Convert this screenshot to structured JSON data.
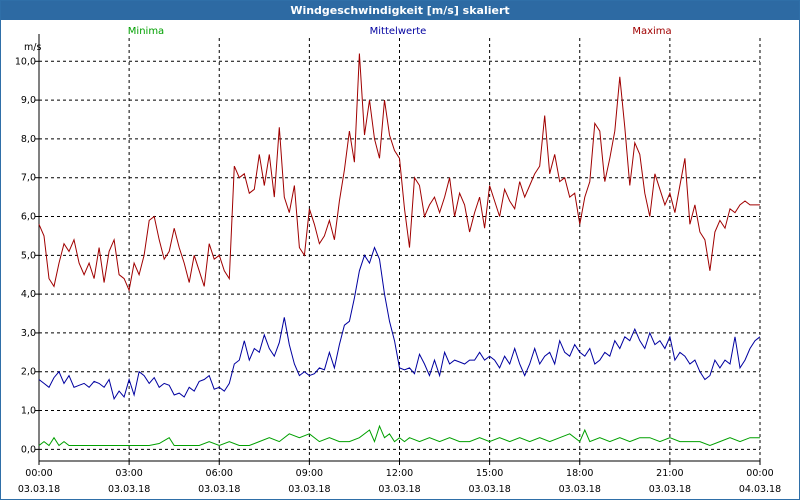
{
  "window_title": "Windgeschwindigkeit [m/s] skaliert",
  "colors": {
    "titlebar": "#2d6aa3",
    "minima": "#00a000",
    "mittelwerte": "#0000a0",
    "maxima": "#a00000"
  },
  "chart_data": {
    "type": "line",
    "title": "Windgeschwindigkeit [m/s] skaliert",
    "ylabel": "m/s",
    "xlabel": "",
    "ylim": [
      -0.3,
      10.6
    ],
    "xlim": [
      "03.03.18 00:00",
      "04.03.18 00:00"
    ],
    "grid": true,
    "legend_placement": "top",
    "y_ticks": [
      0.0,
      1.0,
      2.0,
      3.0,
      4.0,
      5.0,
      6.0,
      7.0,
      8.0,
      9.0,
      10.0
    ],
    "y_tick_labels": [
      "0,0",
      "1,0",
      "2,0",
      "3,0",
      "4,0",
      "5,0",
      "6,0",
      "7,0",
      "8,0",
      "9,0",
      "10,0"
    ],
    "x_ticks": [
      {
        "time": "00:00",
        "date": "03.03.18"
      },
      {
        "time": "03:00",
        "date": "03.03.18"
      },
      {
        "time": "06:00",
        "date": "03.03.18"
      },
      {
        "time": "09:00",
        "date": "03.03.18"
      },
      {
        "time": "12:00",
        "date": "03.03.18"
      },
      {
        "time": "15:00",
        "date": "03.03.18"
      },
      {
        "time": "18:00",
        "date": "03.03.18"
      },
      {
        "time": "21:00",
        "date": "03.03.18"
      },
      {
        "time": "00:00",
        "date": "04.03.18"
      }
    ],
    "series": [
      {
        "name": "Minima",
        "color": "#00a000",
        "x": [
          "00:00",
          "00:10",
          "00:20",
          "00:30",
          "00:40",
          "00:50",
          "01:00",
          "01:20",
          "01:40",
          "02:00",
          "02:20",
          "02:40",
          "03:00",
          "03:20",
          "03:40",
          "04:00",
          "04:20",
          "04:30",
          "04:40",
          "05:00",
          "05:20",
          "05:40",
          "06:00",
          "06:20",
          "06:40",
          "07:00",
          "07:20",
          "07:40",
          "08:00",
          "08:20",
          "08:40",
          "09:00",
          "09:20",
          "09:40",
          "10:00",
          "10:20",
          "10:40",
          "11:00",
          "11:10",
          "11:20",
          "11:30",
          "11:40",
          "11:50",
          "12:00",
          "12:10",
          "12:20",
          "12:40",
          "13:00",
          "13:20",
          "13:40",
          "14:00",
          "14:20",
          "14:40",
          "15:00",
          "15:20",
          "15:40",
          "16:00",
          "16:20",
          "16:40",
          "17:00",
          "17:20",
          "17:40",
          "18:00",
          "18:10",
          "18:20",
          "18:40",
          "19:00",
          "19:20",
          "19:40",
          "20:00",
          "20:20",
          "20:40",
          "21:00",
          "21:20",
          "21:40",
          "22:00",
          "22:20",
          "22:40",
          "23:00",
          "23:20",
          "23:40",
          "24:00"
        ],
        "y": [
          0.1,
          0.2,
          0.1,
          0.3,
          0.1,
          0.2,
          0.1,
          0.1,
          0.1,
          0.1,
          0.1,
          0.1,
          0.1,
          0.1,
          0.1,
          0.15,
          0.3,
          0.1,
          0.1,
          0.1,
          0.1,
          0.2,
          0.1,
          0.2,
          0.1,
          0.1,
          0.2,
          0.3,
          0.2,
          0.4,
          0.3,
          0.4,
          0.2,
          0.3,
          0.2,
          0.2,
          0.3,
          0.5,
          0.2,
          0.6,
          0.3,
          0.4,
          0.2,
          0.3,
          0.2,
          0.3,
          0.2,
          0.3,
          0.2,
          0.3,
          0.2,
          0.2,
          0.3,
          0.2,
          0.3,
          0.2,
          0.3,
          0.2,
          0.3,
          0.2,
          0.3,
          0.4,
          0.2,
          0.5,
          0.2,
          0.3,
          0.2,
          0.3,
          0.2,
          0.3,
          0.3,
          0.2,
          0.3,
          0.2,
          0.2,
          0.2,
          0.1,
          0.2,
          0.3,
          0.2,
          0.3,
          0.3
        ]
      },
      {
        "name": "Mittelwerte",
        "color": "#0000a0",
        "x": [
          "00:00",
          "00:10",
          "00:20",
          "00:30",
          "00:40",
          "00:50",
          "01:00",
          "01:10",
          "01:20",
          "01:30",
          "01:40",
          "01:50",
          "02:00",
          "02:10",
          "02:20",
          "02:30",
          "02:40",
          "02:50",
          "03:00",
          "03:10",
          "03:20",
          "03:30",
          "03:40",
          "03:50",
          "04:00",
          "04:10",
          "04:20",
          "04:30",
          "04:40",
          "04:50",
          "05:00",
          "05:10",
          "05:20",
          "05:30",
          "05:40",
          "05:50",
          "06:00",
          "06:10",
          "06:20",
          "06:30",
          "06:40",
          "06:50",
          "07:00",
          "07:10",
          "07:20",
          "07:30",
          "07:40",
          "07:50",
          "08:00",
          "08:10",
          "08:20",
          "08:30",
          "08:40",
          "08:50",
          "09:00",
          "09:10",
          "09:20",
          "09:30",
          "09:40",
          "09:50",
          "10:00",
          "10:10",
          "10:20",
          "10:30",
          "10:40",
          "10:50",
          "11:00",
          "11:10",
          "11:20",
          "11:30",
          "11:40",
          "11:50",
          "12:00",
          "12:10",
          "12:20",
          "12:30",
          "12:40",
          "12:50",
          "13:00",
          "13:10",
          "13:20",
          "13:30",
          "13:40",
          "13:50",
          "14:00",
          "14:10",
          "14:20",
          "14:30",
          "14:40",
          "14:50",
          "15:00",
          "15:10",
          "15:20",
          "15:30",
          "15:40",
          "15:50",
          "16:00",
          "16:10",
          "16:20",
          "16:30",
          "16:40",
          "16:50",
          "17:00",
          "17:10",
          "17:20",
          "17:30",
          "17:40",
          "17:50",
          "18:00",
          "18:10",
          "18:20",
          "18:30",
          "18:40",
          "18:50",
          "19:00",
          "19:10",
          "19:20",
          "19:30",
          "19:40",
          "19:50",
          "20:00",
          "20:10",
          "20:20",
          "20:30",
          "20:40",
          "20:50",
          "21:00",
          "21:10",
          "21:20",
          "21:30",
          "21:40",
          "21:50",
          "22:00",
          "22:10",
          "22:20",
          "22:30",
          "22:40",
          "22:50",
          "23:00",
          "23:10",
          "23:20",
          "23:30",
          "23:40",
          "23:50",
          "24:00"
        ],
        "y": [
          1.8,
          1.7,
          1.6,
          1.85,
          2.0,
          1.7,
          1.9,
          1.6,
          1.65,
          1.7,
          1.6,
          1.75,
          1.7,
          1.6,
          1.8,
          1.3,
          1.5,
          1.35,
          1.8,
          1.4,
          2.0,
          1.9,
          1.7,
          1.85,
          1.6,
          1.7,
          1.65,
          1.4,
          1.45,
          1.35,
          1.6,
          1.5,
          1.75,
          1.8,
          1.9,
          1.55,
          1.6,
          1.5,
          1.7,
          2.2,
          2.3,
          2.8,
          2.3,
          2.6,
          2.5,
          2.95,
          2.6,
          2.4,
          2.75,
          3.4,
          2.7,
          2.2,
          1.9,
          2.0,
          1.9,
          1.95,
          2.1,
          2.05,
          2.5,
          2.1,
          2.7,
          3.2,
          3.3,
          3.9,
          4.6,
          5.0,
          4.8,
          5.2,
          4.9,
          4.0,
          3.3,
          2.8,
          2.1,
          2.05,
          2.1,
          1.95,
          2.45,
          2.2,
          1.9,
          2.3,
          1.9,
          2.5,
          2.2,
          2.3,
          2.25,
          2.2,
          2.3,
          2.3,
          2.5,
          2.3,
          2.4,
          2.3,
          2.1,
          2.4,
          2.2,
          2.6,
          2.2,
          1.9,
          2.2,
          2.6,
          2.2,
          2.4,
          2.5,
          2.2,
          2.8,
          2.5,
          2.4,
          2.7,
          2.5,
          2.4,
          2.6,
          2.2,
          2.3,
          2.5,
          2.4,
          2.8,
          2.6,
          2.9,
          2.8,
          3.1,
          2.8,
          2.6,
          3.0,
          2.7,
          2.8,
          2.6,
          2.9,
          2.3,
          2.5,
          2.4,
          2.2,
          2.3,
          2.0,
          1.8,
          1.9,
          2.3,
          2.1,
          2.3,
          2.2,
          2.9,
          2.1,
          2.3,
          2.6,
          2.8,
          2.9
        ]
      },
      {
        "name": "Maxima",
        "color": "#a00000",
        "x": [
          "00:00",
          "00:10",
          "00:20",
          "00:30",
          "00:40",
          "00:50",
          "01:00",
          "01:10",
          "01:20",
          "01:30",
          "01:40",
          "01:50",
          "02:00",
          "02:10",
          "02:20",
          "02:30",
          "02:40",
          "02:50",
          "03:00",
          "03:10",
          "03:20",
          "03:30",
          "03:40",
          "03:50",
          "04:00",
          "04:10",
          "04:20",
          "04:30",
          "04:40",
          "04:50",
          "05:00",
          "05:10",
          "05:20",
          "05:30",
          "05:40",
          "05:50",
          "06:00",
          "06:10",
          "06:20",
          "06:30",
          "06:40",
          "06:50",
          "07:00",
          "07:10",
          "07:20",
          "07:30",
          "07:40",
          "07:50",
          "08:00",
          "08:10",
          "08:20",
          "08:30",
          "08:40",
          "08:50",
          "09:00",
          "09:10",
          "09:20",
          "09:30",
          "09:40",
          "09:50",
          "10:00",
          "10:10",
          "10:20",
          "10:30",
          "10:40",
          "10:50",
          "11:00",
          "11:10",
          "11:20",
          "11:30",
          "11:40",
          "11:50",
          "12:00",
          "12:10",
          "12:20",
          "12:30",
          "12:40",
          "12:50",
          "13:00",
          "13:10",
          "13:20",
          "13:30",
          "13:40",
          "13:50",
          "14:00",
          "14:10",
          "14:20",
          "14:30",
          "14:40",
          "14:50",
          "15:00",
          "15:10",
          "15:20",
          "15:30",
          "15:40",
          "15:50",
          "16:00",
          "16:10",
          "16:20",
          "16:30",
          "16:40",
          "16:50",
          "17:00",
          "17:10",
          "17:20",
          "17:30",
          "17:40",
          "17:50",
          "18:00",
          "18:10",
          "18:20",
          "18:30",
          "18:40",
          "18:50",
          "19:00",
          "19:10",
          "19:20",
          "19:30",
          "19:40",
          "19:50",
          "20:00",
          "20:10",
          "20:20",
          "20:30",
          "20:40",
          "20:50",
          "21:00",
          "21:10",
          "21:20",
          "21:30",
          "21:40",
          "21:50",
          "22:00",
          "22:10",
          "22:20",
          "22:30",
          "22:40",
          "22:50",
          "23:00",
          "23:10",
          "23:20",
          "23:30",
          "23:40",
          "23:50",
          "24:00"
        ],
        "y": [
          5.8,
          5.5,
          4.4,
          4.2,
          4.8,
          5.3,
          5.1,
          5.4,
          4.8,
          4.5,
          4.8,
          4.4,
          5.2,
          4.3,
          5.1,
          5.4,
          4.5,
          4.4,
          4.1,
          4.8,
          4.5,
          5.0,
          5.9,
          6.0,
          5.4,
          4.9,
          5.1,
          5.7,
          5.2,
          4.8,
          4.3,
          5.0,
          4.6,
          4.2,
          5.3,
          4.9,
          5.0,
          4.6,
          4.4,
          7.3,
          7.0,
          7.1,
          6.6,
          6.7,
          7.6,
          6.8,
          7.6,
          6.5,
          8.3,
          6.5,
          6.1,
          6.8,
          5.2,
          5.0,
          6.2,
          5.8,
          5.3,
          5.5,
          5.9,
          5.4,
          6.4,
          7.2,
          8.2,
          7.4,
          10.2,
          8.1,
          9.0,
          8.0,
          7.5,
          9.0,
          8.1,
          7.7,
          7.5,
          6.2,
          5.2,
          7.0,
          6.8,
          6.0,
          6.3,
          6.5,
          6.1,
          6.5,
          7.0,
          6.0,
          6.6,
          6.3,
          5.6,
          6.1,
          6.5,
          5.7,
          6.8,
          6.4,
          6.0,
          6.7,
          6.4,
          6.2,
          6.9,
          6.5,
          6.8,
          7.1,
          7.3,
          8.6,
          7.1,
          7.6,
          6.9,
          7.0,
          6.5,
          6.6,
          5.8,
          6.5,
          6.9,
          8.4,
          8.2,
          6.9,
          7.5,
          8.2,
          9.6,
          8.3,
          6.8,
          7.9,
          7.6,
          6.6,
          6.0,
          7.1,
          6.7,
          6.3,
          6.6,
          6.1,
          6.8,
          7.5,
          5.8,
          6.3,
          5.6,
          5.4,
          4.6,
          5.6,
          5.9,
          5.7,
          6.2,
          6.1,
          6.3,
          6.4,
          6.3,
          6.3,
          6.3
        ]
      }
    ]
  }
}
